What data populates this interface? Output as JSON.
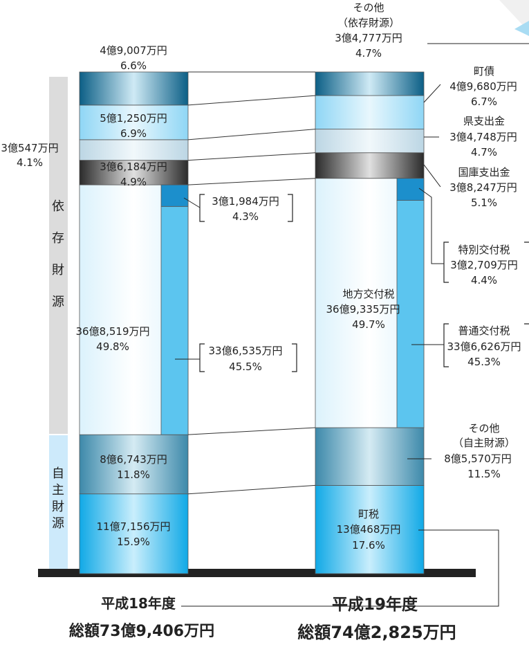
{
  "colors": {
    "dark_teal": "#0f6a93",
    "light_blue": "#9adcf6",
    "pale_blue": "#cfe4ef",
    "dark_gray": "#3a3a3a",
    "very_pale": "#e4f5fd",
    "mid_blue": "#5cc5ef",
    "teal_gray": "#4b97b6",
    "bright_blue": "#1fb4ec",
    "accent_blue": "#1c8fcc"
  },
  "chart_data": {
    "type": "stacked-bar",
    "totals": [
      {
        "name": "平成18年度",
        "total": "総額73億9,406万円"
      },
      {
        "name": "平成19年度",
        "total": "総額74億2,825万円"
      }
    ],
    "bars": [
      {
        "name": "平成18年度",
        "segments": [
          {
            "key": "machizei",
            "amount": "11億7,156万円",
            "pct": "15.9%",
            "value": 15.9,
            "color": "bright_blue"
          },
          {
            "key": "other_own",
            "amount": "8億6,743万円",
            "pct": "11.8%",
            "value": 11.8,
            "color": "teal_gray"
          },
          {
            "key": "chiho",
            "amount": "36億8,519万円",
            "pct": "49.8%",
            "value": 49.8,
            "color": "very_pale"
          },
          {
            "key": "kokko",
            "amount": "3億6,184万円",
            "pct": "4.9%",
            "value": 4.9,
            "color": "dark_gray"
          },
          {
            "key": "ken",
            "amount": "3億547万円",
            "pct": "4.1%",
            "value": 4.1,
            "color": "pale_blue"
          },
          {
            "key": "chosai",
            "amount": "5億1,250万円",
            "pct": "6.9%",
            "value": 6.9,
            "color": "light_blue"
          },
          {
            "key": "other_dep",
            "amount": "4億9,007万円",
            "pct": "6.6%",
            "value": 6.6,
            "color": "dark_teal"
          }
        ],
        "sub": [
          {
            "key": "futsu",
            "amount": "33億6,535万円",
            "pct": "45.5%",
            "value": 45.5,
            "color": "mid_blue"
          },
          {
            "key": "tokubetsu",
            "amount": "3億1,984万円",
            "pct": "4.3%",
            "value": 4.3,
            "color": "accent_blue"
          }
        ]
      },
      {
        "name": "平成19年度",
        "segments": [
          {
            "key": "machizei",
            "label": "町税",
            "amount": "13億468万円",
            "pct": "17.6%",
            "value": 17.6,
            "color": "bright_blue"
          },
          {
            "key": "other_own",
            "label": "その他\n（自主財源）",
            "amount": "8億5,570万円",
            "pct": "11.5%",
            "value": 11.5,
            "color": "teal_gray"
          },
          {
            "key": "chiho",
            "label": "地方交付税",
            "amount": "36億9,335万円",
            "pct": "49.7%",
            "value": 49.7,
            "color": "very_pale"
          },
          {
            "key": "kokko",
            "label": "国庫支出金",
            "amount": "3億8,247万円",
            "pct": "5.1%",
            "value": 5.1,
            "color": "dark_gray"
          },
          {
            "key": "ken",
            "label": "県支出金",
            "amount": "3億4,748万円",
            "pct": "4.7%",
            "value": 4.7,
            "color": "pale_blue"
          },
          {
            "key": "chosai",
            "label": "町債",
            "amount": "4億9,680万円",
            "pct": "6.7%",
            "value": 6.7,
            "color": "light_blue"
          },
          {
            "key": "other_dep",
            "label": "その他\n（依存財源）",
            "amount": "3億4,777万円",
            "pct": "4.7%",
            "value": 4.7,
            "color": "dark_teal"
          }
        ],
        "sub": [
          {
            "key": "futsu",
            "label": "普通交付税",
            "amount": "33億6,626万円",
            "pct": "45.3%",
            "value": 45.3,
            "color": "mid_blue"
          },
          {
            "key": "tokubetsu",
            "label": "特別交付税",
            "amount": "3億2,709万円",
            "pct": "4.4%",
            "value": 4.4,
            "color": "accent_blue"
          }
        ]
      }
    ],
    "categories": [
      {
        "label": "依存財源",
        "color": "#dcdcdc"
      },
      {
        "label": "自主財源",
        "color": "#cdeafb"
      }
    ]
  }
}
